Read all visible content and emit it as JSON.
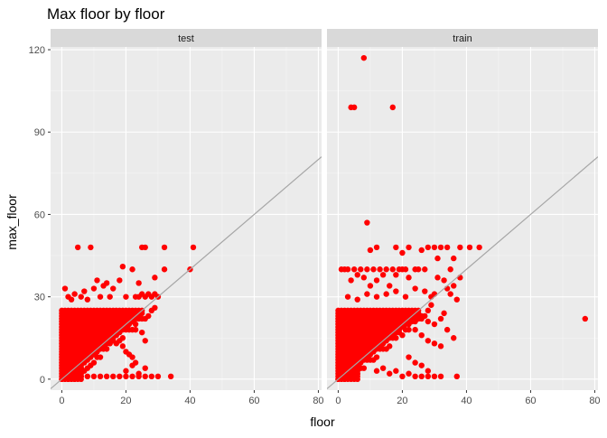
{
  "chart_data": {
    "type": "scatter",
    "title": "Max floor by floor",
    "xlabel": "floor",
    "ylabel": "max_floor",
    "xlim": [
      -3.5,
      81
    ],
    "ylim": [
      -4,
      121
    ],
    "x_ticks": [
      0,
      20,
      40,
      60,
      80
    ],
    "y_ticks": [
      0,
      30,
      60,
      90,
      120
    ],
    "grid": true,
    "reference_line": {
      "slope": 1,
      "intercept": 0,
      "color": "#a6a6a6"
    },
    "point_color": "#ff0000",
    "panels": [
      {
        "name": "test",
        "dense_region": {
          "x_max": 25,
          "y_max": 25
        },
        "points": [
          [
            1,
            33
          ],
          [
            2,
            30
          ],
          [
            3,
            29
          ],
          [
            4,
            31
          ],
          [
            5,
            48
          ],
          [
            6,
            30
          ],
          [
            7,
            32
          ],
          [
            8,
            29
          ],
          [
            9,
            48
          ],
          [
            10,
            33
          ],
          [
            11,
            36
          ],
          [
            12,
            30
          ],
          [
            13,
            34
          ],
          [
            14,
            35
          ],
          [
            15,
            30
          ],
          [
            16,
            33
          ],
          [
            18,
            36
          ],
          [
            19,
            41
          ],
          [
            20,
            30
          ],
          [
            22,
            40
          ],
          [
            24,
            35
          ],
          [
            25,
            48
          ],
          [
            26,
            48
          ],
          [
            28,
            30
          ],
          [
            29,
            31
          ],
          [
            30,
            30
          ],
          [
            23,
            30
          ],
          [
            24,
            30
          ],
          [
            25,
            31
          ],
          [
            26,
            30
          ],
          [
            27,
            31
          ],
          [
            29,
            37
          ],
          [
            32,
            40
          ],
          [
            32,
            48
          ],
          [
            20,
            23
          ],
          [
            22,
            21
          ],
          [
            23,
            18
          ],
          [
            25,
            17
          ],
          [
            26,
            14
          ],
          [
            20,
            10
          ],
          [
            21,
            9
          ],
          [
            22,
            8
          ],
          [
            23,
            6
          ],
          [
            19,
            12
          ],
          [
            20,
            3
          ],
          [
            22,
            5
          ],
          [
            24,
            2
          ],
          [
            26,
            4
          ],
          [
            28,
            1
          ],
          [
            30,
            1
          ],
          [
            34,
            1
          ],
          [
            40,
            40
          ],
          [
            41,
            48
          ],
          [
            2,
            1
          ],
          [
            4,
            1
          ],
          [
            6,
            1
          ],
          [
            8,
            1
          ],
          [
            10,
            1
          ],
          [
            12,
            1
          ],
          [
            14,
            1
          ],
          [
            16,
            1
          ],
          [
            18,
            1
          ],
          [
            20,
            1
          ],
          [
            22,
            1
          ],
          [
            24,
            1
          ],
          [
            26,
            1
          ]
        ]
      },
      {
        "name": "train",
        "dense_region": {
          "x_max": 25,
          "y_max": 25
        },
        "points": [
          [
            4,
            99
          ],
          [
            5,
            99
          ],
          [
            8,
            117
          ],
          [
            17,
            99
          ],
          [
            9,
            57
          ],
          [
            10,
            47
          ],
          [
            1,
            40
          ],
          [
            2,
            40
          ],
          [
            3,
            40
          ],
          [
            4,
            36
          ],
          [
            5,
            40
          ],
          [
            6,
            38
          ],
          [
            7,
            40
          ],
          [
            8,
            37
          ],
          [
            9,
            40
          ],
          [
            10,
            34
          ],
          [
            11,
            40
          ],
          [
            12,
            36
          ],
          [
            13,
            40
          ],
          [
            14,
            38
          ],
          [
            15,
            40
          ],
          [
            16,
            34
          ],
          [
            17,
            40
          ],
          [
            18,
            38
          ],
          [
            19,
            40
          ],
          [
            20,
            40
          ],
          [
            21,
            40
          ],
          [
            22,
            37
          ],
          [
            24,
            40
          ],
          [
            25,
            40
          ],
          [
            27,
            40
          ],
          [
            28,
            48
          ],
          [
            26,
            47
          ],
          [
            30,
            48
          ],
          [
            31,
            44
          ],
          [
            32,
            48
          ],
          [
            34,
            48
          ],
          [
            35,
            40
          ],
          [
            36,
            44
          ],
          [
            38,
            48
          ],
          [
            41,
            48
          ],
          [
            44,
            48
          ],
          [
            3,
            30
          ],
          [
            6,
            29
          ],
          [
            9,
            31
          ],
          [
            12,
            30
          ],
          [
            15,
            31
          ],
          [
            18,
            32
          ],
          [
            21,
            30
          ],
          [
            24,
            33
          ],
          [
            27,
            32
          ],
          [
            29,
            30
          ],
          [
            30,
            31
          ],
          [
            31,
            37
          ],
          [
            33,
            36
          ],
          [
            34,
            33
          ],
          [
            35,
            31
          ],
          [
            36,
            34
          ],
          [
            37,
            29
          ],
          [
            38,
            37
          ],
          [
            12,
            48
          ],
          [
            18,
            48
          ],
          [
            22,
            48
          ],
          [
            20,
            46
          ],
          [
            20,
            22
          ],
          [
            22,
            20
          ],
          [
            24,
            18
          ],
          [
            26,
            16
          ],
          [
            28,
            14
          ],
          [
            30,
            13
          ],
          [
            32,
            12
          ],
          [
            34,
            18
          ],
          [
            36,
            15
          ],
          [
            26,
            22
          ],
          [
            28,
            21
          ],
          [
            30,
            20
          ],
          [
            32,
            22
          ],
          [
            33,
            24
          ],
          [
            22,
            8
          ],
          [
            24,
            6
          ],
          [
            26,
            5
          ],
          [
            28,
            3
          ],
          [
            12,
            3
          ],
          [
            14,
            4
          ],
          [
            16,
            2
          ],
          [
            18,
            3
          ],
          [
            20,
            1
          ],
          [
            22,
            2
          ],
          [
            24,
            1
          ],
          [
            26,
            1
          ],
          [
            28,
            1
          ],
          [
            30,
            1
          ],
          [
            32,
            1
          ],
          [
            37,
            1
          ],
          [
            77,
            22
          ]
        ]
      }
    ]
  }
}
